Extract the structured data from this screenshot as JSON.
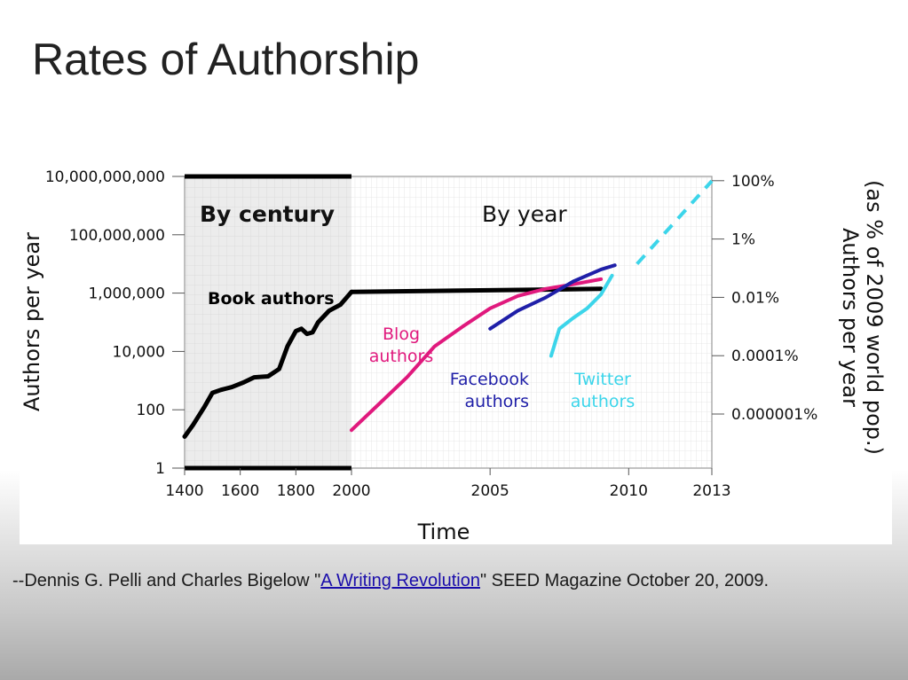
{
  "slide": {
    "title": "Rates of Authorship"
  },
  "caption": {
    "prefix": "--Dennis G. Pelli and Charles Bigelow \"",
    "link_text": "A Writing Revolution",
    "suffix": "\" SEED Magazine October 20, 2009."
  },
  "chart_data": {
    "type": "line",
    "title": "",
    "xlabel": "Time",
    "ylabel": "Authors per year",
    "ylabel_right": "Authors per year (as % of 2009 world pop.)",
    "regions": [
      {
        "label": "By century",
        "x_from": 1400,
        "x_to": 2000,
        "shaded": true
      },
      {
        "label": "By year",
        "x_from": 2000,
        "x_to": 2013,
        "shaded": false
      }
    ],
    "x_ticks": {
      "by_century": [
        "1400",
        "1600",
        "1800",
        "2000"
      ],
      "by_year": [
        "2005",
        "2010",
        "2013"
      ]
    },
    "y_ticks_left": [
      "1",
      "100",
      "10,000",
      "1,000,000",
      "100,000,000",
      "10,000,000,000"
    ],
    "y_ticks_right": [
      "0.000001%",
      "0.0001%",
      "0.01%",
      "1%",
      "100%"
    ],
    "y_scale": "log",
    "ylim": [
      1,
      10000000000
    ],
    "grid": true,
    "series": [
      {
        "name": "Book authors",
        "color": "#000000",
        "panel": "by_century",
        "points": [
          [
            1400,
            12
          ],
          [
            1430,
            30
          ],
          [
            1470,
            120
          ],
          [
            1500,
            380
          ],
          [
            1530,
            480
          ],
          [
            1570,
            600
          ],
          [
            1610,
            850
          ],
          [
            1650,
            1300
          ],
          [
            1700,
            1400
          ],
          [
            1740,
            2500
          ],
          [
            1770,
            15000
          ],
          [
            1800,
            50000
          ],
          [
            1820,
            60000
          ],
          [
            1840,
            40000
          ],
          [
            1860,
            45000
          ],
          [
            1880,
            100000
          ],
          [
            1920,
            250000
          ],
          [
            1960,
            400000
          ],
          [
            2000,
            1100000
          ]
        ]
      },
      {
        "name": "Book authors",
        "color": "#000000",
        "panel": "by_year",
        "points": [
          [
            2000,
            1100000
          ],
          [
            2005,
            1250000
          ],
          [
            2009,
            1400000
          ]
        ]
      },
      {
        "name": "Blog authors",
        "color": "#e0197d",
        "panel": "by_year",
        "points": [
          [
            2000,
            20
          ],
          [
            2001,
            160
          ],
          [
            2002,
            1300
          ],
          [
            2003,
            15000
          ],
          [
            2004,
            70000
          ],
          [
            2005,
            300000
          ],
          [
            2006,
            800000
          ],
          [
            2007,
            1400000
          ],
          [
            2008,
            2000000
          ],
          [
            2009,
            3000000
          ]
        ]
      },
      {
        "name": "Facebook authors",
        "color": "#1f1fa8",
        "panel": "by_year",
        "points": [
          [
            2005,
            60000
          ],
          [
            2006,
            250000
          ],
          [
            2007,
            700000
          ],
          [
            2008,
            2500000
          ],
          [
            2009,
            6500000
          ],
          [
            2009.5,
            9000000
          ]
        ]
      },
      {
        "name": "Twitter authors",
        "color": "#3cd5ea",
        "panel": "by_year",
        "points": [
          [
            2007.2,
            7000
          ],
          [
            2007.5,
            60000
          ],
          [
            2008,
            140000
          ],
          [
            2008.5,
            300000
          ],
          [
            2009,
            900000
          ],
          [
            2009.4,
            4000000
          ]
        ]
      },
      {
        "name": "",
        "color": "#3cd5ea",
        "dashed": true,
        "panel": "by_year",
        "points": [
          [
            2010.3,
            10000000
          ],
          [
            2013,
            7000000000
          ]
        ]
      }
    ]
  }
}
